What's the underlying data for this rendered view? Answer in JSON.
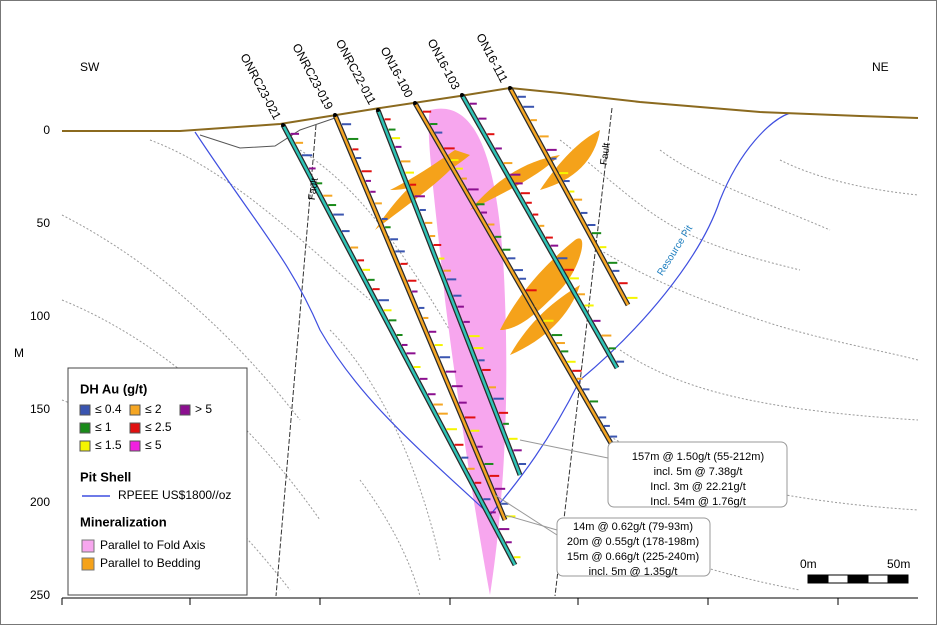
{
  "corners": {
    "left": "SW",
    "right": "NE"
  },
  "axis": {
    "label": "M",
    "ticks": [
      0,
      50,
      100,
      150,
      200,
      250
    ]
  },
  "drill_holes": [
    "ONRC23-021",
    "ONRC23-019",
    "ONRC22-011",
    "ON16-100",
    "ON16-103",
    "ON16-111"
  ],
  "faults": [
    "Fault",
    "Fault"
  ],
  "pit_label": "Resource Pit",
  "legend": {
    "au_title": "DH Au (g/t)",
    "au_items": [
      {
        "label": "≤ 0.4",
        "color": "#3a55b0"
      },
      {
        "label": "≤ 2",
        "color": "#f5a623"
      },
      {
        "label": "> 5",
        "color": "#8b0f8f"
      },
      {
        "label": "≤ 1",
        "color": "#1a8a1a"
      },
      {
        "label": "≤ 2.5",
        "color": "#e01010"
      },
      {
        "label": "≤ 1.5",
        "color": "#f5f500"
      },
      {
        "label": "≤ 5",
        "color": "#f020e0"
      }
    ],
    "pit_title": "Pit Shell",
    "pit_item": {
      "label": "RPEEE US$1800//oz",
      "color": "#3f4fe0"
    },
    "min_title": "Mineralization",
    "min_items": [
      {
        "label": "Parallel to Fold Axis",
        "color": "#f7a6ee"
      },
      {
        "label": "Parallel to Bedding",
        "color": "#f5a21a"
      }
    ]
  },
  "callouts": [
    [
      "157m @ 1.50g/t (55-212m)",
      "incl. 5m @ 7.38g/t",
      "Incl. 3m @ 22.21g/t",
      "Incl. 54m @ 1.76g/t"
    ],
    [
      "14m @ 0.62g/t (79-93m)",
      "20m @ 0.55g/t (178-198m)",
      "15m @ 0.66g/t (225-240m)",
      "incl. 5m @ 1.35g/t"
    ]
  ],
  "scale_bar": {
    "start": "0m",
    "end": "50m"
  }
}
